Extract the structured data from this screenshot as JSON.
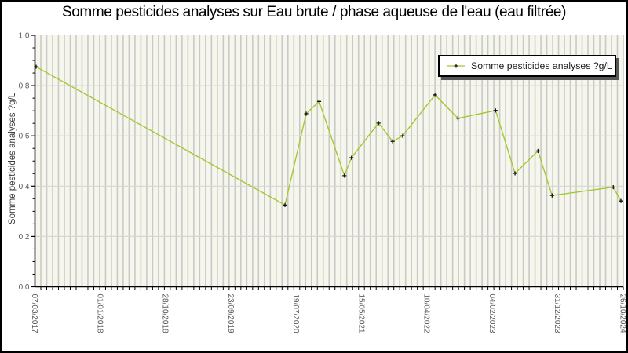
{
  "window": {
    "border_color": "#000000",
    "background": "#ffffff"
  },
  "chart_data": {
    "type": "line",
    "title": "Somme pesticides analyses sur Eau brute / phase aqueuse de l'eau (eau filtrée)",
    "xlabel": "",
    "ylabel": "Somme pesticides analyses ?g/L",
    "ylim": [
      0.0,
      1.0
    ],
    "y_major_tick_labels": [
      "0.0",
      "0.2",
      "0.4",
      "0.6",
      "0.8",
      "1.0"
    ],
    "y_major_step": 0.2,
    "y_minor_step": 0.05,
    "x_tick_labels": [
      "07/03/2017",
      "01/01/2018",
      "28/10/2018",
      "23/09/2019",
      "19/07/2020",
      "15/05/2021",
      "10/04/2022",
      "04/02/2023",
      "31/12/2023",
      "26/10/2024"
    ],
    "x_minor_gridline_count": 100,
    "grid": {
      "vertical_minor": true,
      "horizontal_major": true
    },
    "legend": {
      "position": "top-right",
      "label": "Somme pesticides analyses ?g/L"
    },
    "series": [
      {
        "name": "Somme pesticides analyses ?g/L",
        "marker": "plus",
        "points": [
          {
            "x_frac": 0.002,
            "y": 0.875
          },
          {
            "x_frac": 0.425,
            "y": 0.325
          },
          {
            "x_frac": 0.461,
            "y": 0.688
          },
          {
            "x_frac": 0.483,
            "y": 0.737
          },
          {
            "x_frac": 0.526,
            "y": 0.442
          },
          {
            "x_frac": 0.538,
            "y": 0.513
          },
          {
            "x_frac": 0.584,
            "y": 0.651
          },
          {
            "x_frac": 0.608,
            "y": 0.578
          },
          {
            "x_frac": 0.625,
            "y": 0.6
          },
          {
            "x_frac": 0.68,
            "y": 0.763
          },
          {
            "x_frac": 0.719,
            "y": 0.67
          },
          {
            "x_frac": 0.783,
            "y": 0.701
          },
          {
            "x_frac": 0.816,
            "y": 0.451
          },
          {
            "x_frac": 0.855,
            "y": 0.54
          },
          {
            "x_frac": 0.879,
            "y": 0.363
          },
          {
            "x_frac": 0.983,
            "y": 0.396
          },
          {
            "x_frac": 0.996,
            "y": 0.341
          }
        ]
      }
    ]
  },
  "colors": {
    "line": "#a2c832",
    "marker": "#111111",
    "plot_background": "#f6f6ec",
    "vertical_gridline": "#c9c9c9",
    "horizontal_gridline": "#d6d6d6",
    "spine": "#000000",
    "tick": "#000000",
    "tick_label": "#5a5a5a",
    "title_text": "#000000",
    "legend_border": "#000000",
    "legend_shadow": "#555555",
    "legend_text": "#1a1a1a"
  }
}
